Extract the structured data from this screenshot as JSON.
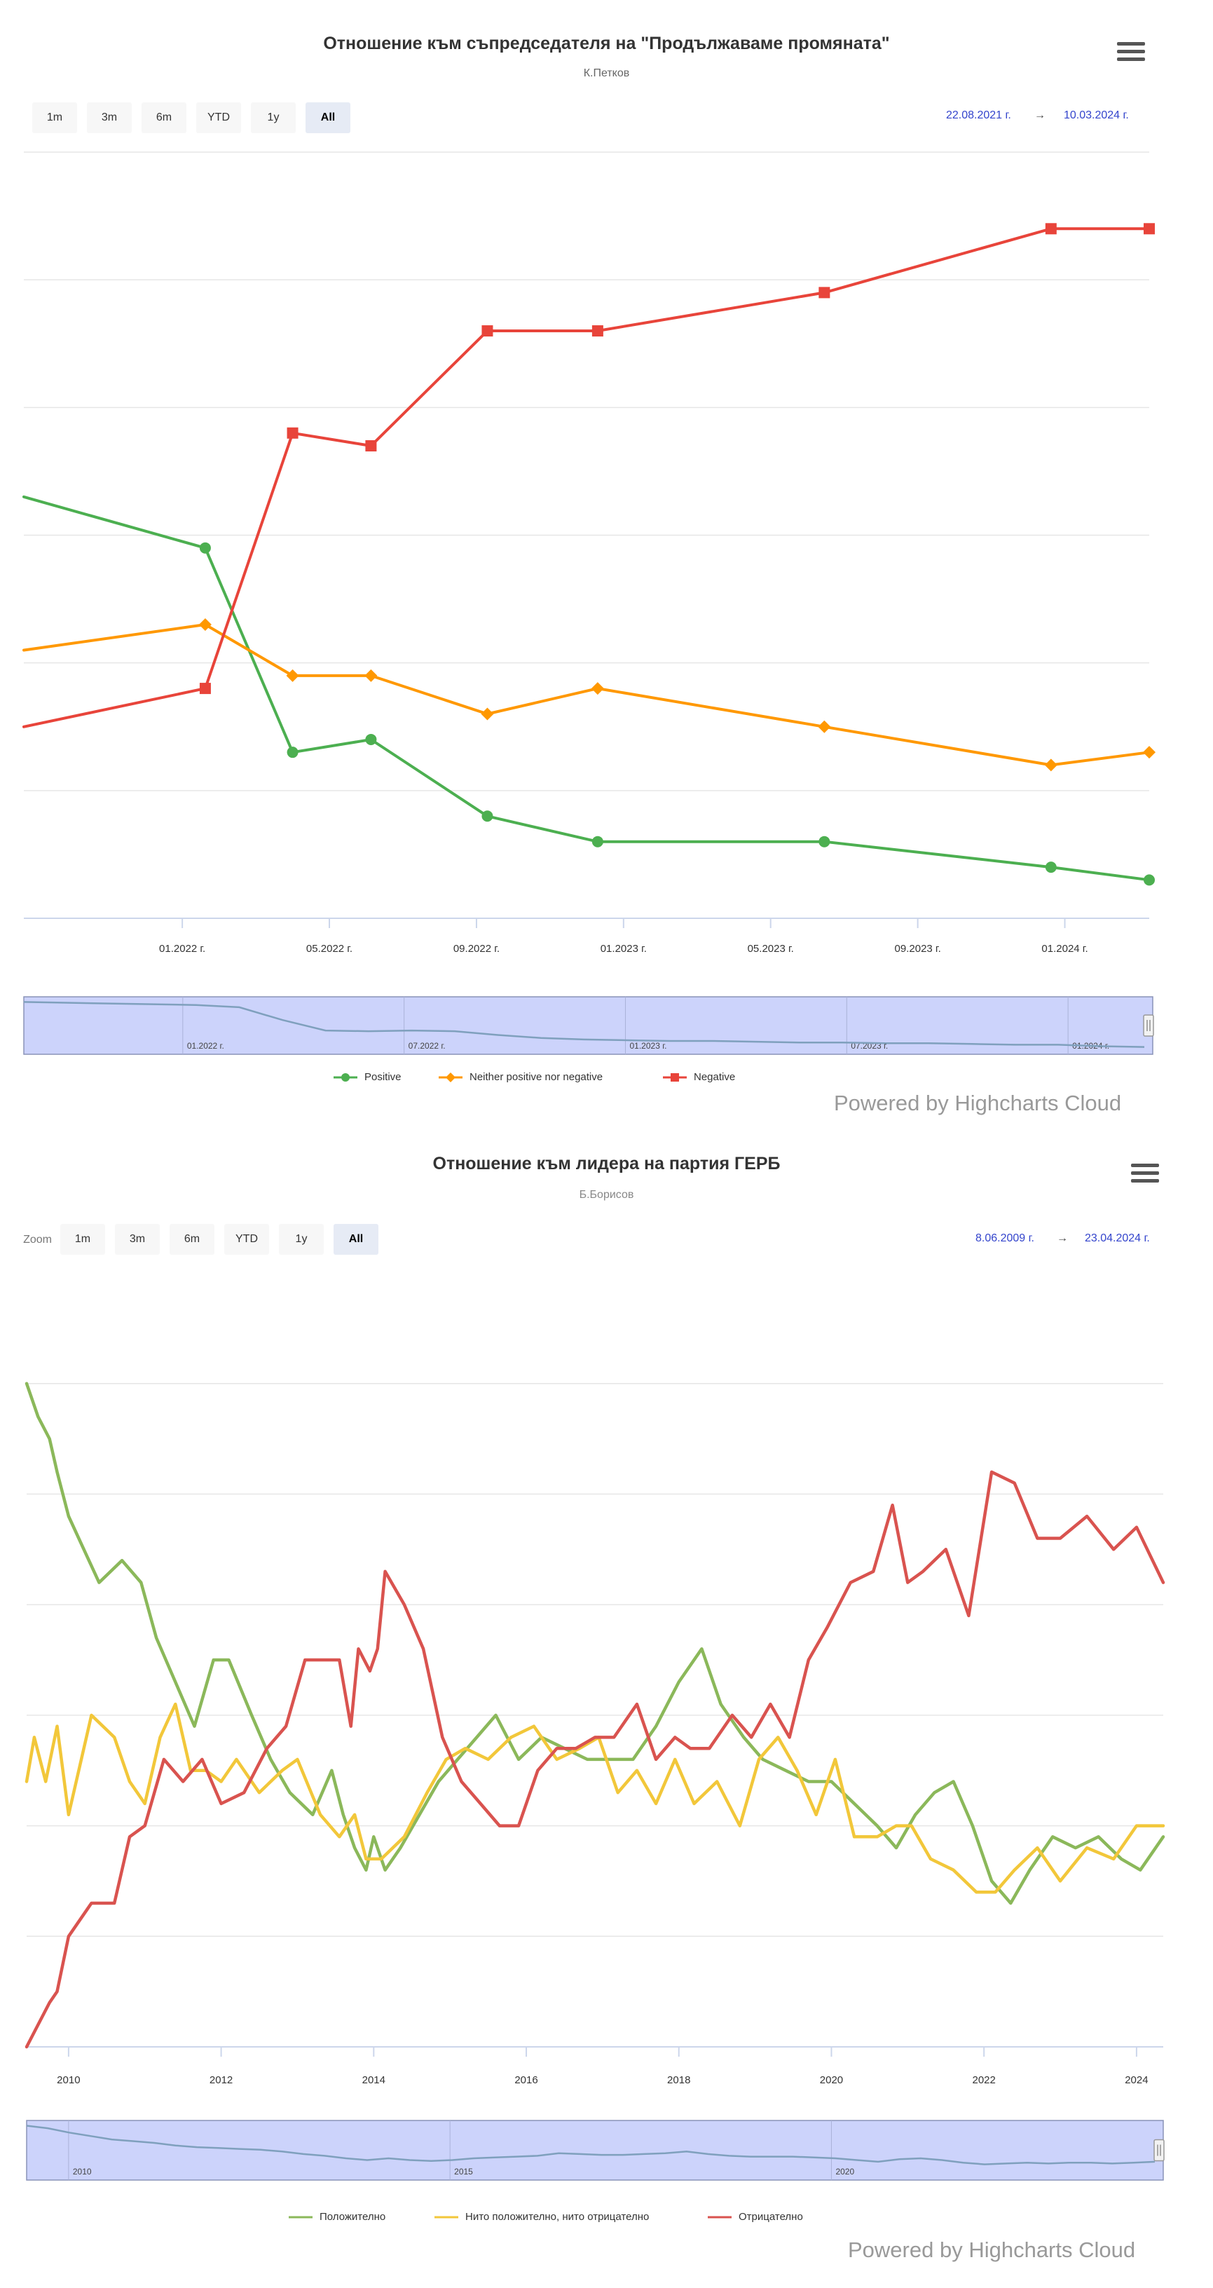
{
  "charts": [
    {
      "title": "Отношение към съпредседателя на \"Продължаваме промяната\"",
      "subtitle": "К.Петков",
      "range_buttons": [
        "1m",
        "3m",
        "6m",
        "YTD",
        "1y",
        "All"
      ],
      "active_range": "All",
      "zoom_label": "",
      "date_from": "22.08.2021 г.",
      "date_separator": "→",
      "date_to": "10.03.2024 г.",
      "legend": [
        "Positive",
        "Neither positive nor negative",
        "Negative"
      ],
      "powered_by": "Powered by Highcharts Cloud"
    },
    {
      "title": "Отношение към лидера на партия ГЕРБ",
      "subtitle": "Б.Борисов",
      "range_buttons": [
        "1m",
        "3m",
        "6m",
        "YTD",
        "1y",
        "All"
      ],
      "active_range": "All",
      "zoom_label": "Zoom",
      "date_from": "8.06.2009 г.",
      "date_separator": "→",
      "date_to": "23.04.2024 г.",
      "legend": [
        "Положително",
        "Нито положително, нито отрицателно",
        "Отрицателно"
      ],
      "powered_by": "Powered by Highcharts Cloud"
    }
  ],
  "chart_data": [
    {
      "type": "line",
      "x_axis": "datetime",
      "xlim": [
        "2021-08-22",
        "2024-03-10"
      ],
      "ylim": [
        0,
        60
      ],
      "grid": true,
      "legend_position": "bottom",
      "x_tick_labels": [
        "01.2022 г.",
        "05.2022 г.",
        "09.2022 г.",
        "01.2023 г.",
        "05.2023 г.",
        "09.2023 г.",
        "01.2024 г."
      ],
      "navigator_labels": [
        "01.2022 г.",
        "07.2022 г.",
        "01.2023 г.",
        "07.2023 г.",
        "01.2024 г."
      ],
      "series": [
        {
          "name": "Positive",
          "color": "#4caf50",
          "marker": "circle",
          "x": [
            "2021-08-22",
            "2022-01-20",
            "2022-04-01",
            "2022-06-05",
            "2022-09-10",
            "2022-12-10",
            "2023-06-15",
            "2023-12-20",
            "2024-03-10"
          ],
          "y": [
            33,
            29,
            13,
            14,
            8,
            6,
            6,
            4,
            3
          ]
        },
        {
          "name": "Neither positive nor negative",
          "color": "#ff9800",
          "marker": "diamond",
          "x": [
            "2021-08-22",
            "2022-01-20",
            "2022-04-01",
            "2022-06-05",
            "2022-09-10",
            "2022-12-10",
            "2023-06-15",
            "2023-12-20",
            "2024-03-10"
          ],
          "y": [
            21,
            23,
            19,
            19,
            16,
            18,
            15,
            12,
            13
          ]
        },
        {
          "name": "Negative",
          "color": "#e8443a",
          "marker": "square",
          "x": [
            "2021-08-22",
            "2022-01-20",
            "2022-04-01",
            "2022-06-05",
            "2022-09-10",
            "2022-12-10",
            "2023-06-15",
            "2023-12-20",
            "2024-03-10"
          ],
          "y": [
            15,
            18,
            38,
            37,
            46,
            46,
            49,
            54,
            54
          ]
        }
      ],
      "navigator_series": [
        33,
        32.5,
        32,
        31.5,
        31,
        29.5,
        21,
        14,
        13.5,
        14,
        13.5,
        11,
        9,
        8,
        7.5,
        7,
        7,
        6.5,
        6,
        6,
        5.5,
        5.5,
        5,
        4.5,
        4.5,
        3.5,
        3
      ]
    },
    {
      "type": "line",
      "x_axis": "numeric",
      "xlim": [
        2009.45,
        2024.35
      ],
      "ylim": [
        0,
        70
      ],
      "grid": true,
      "legend_position": "bottom",
      "x_tick_labels": [
        "2010",
        "2012",
        "2014",
        "2016",
        "2018",
        "2020",
        "2022",
        "2024"
      ],
      "navigator_labels": [
        "2010",
        "2015",
        "2020"
      ],
      "series": [
        {
          "name": "Положително",
          "color": "#8bb85a",
          "x": [
            2009.45,
            2009.6,
            2009.75,
            2009.85,
            2010.0,
            2010.4,
            2010.7,
            2010.95,
            2011.15,
            2011.4,
            2011.65,
            2011.9,
            2012.1,
            2012.4,
            2012.65,
            2012.9,
            2013.2,
            2013.45,
            2013.6,
            2013.75,
            2013.9,
            2014.0,
            2014.15,
            2014.35,
            2014.6,
            2014.85,
            2015.1,
            2015.35,
            2015.6,
            2015.9,
            2016.2,
            2016.5,
            2016.8,
            2017.1,
            2017.4,
            2017.7,
            2018.0,
            2018.3,
            2018.55,
            2018.85,
            2019.1,
            2019.4,
            2019.7,
            2020.0,
            2020.3,
            2020.6,
            2020.85,
            2021.1,
            2021.35,
            2021.6,
            2021.85,
            2022.1,
            2022.35,
            2022.6,
            2022.9,
            2023.2,
            2023.5,
            2023.8,
            2024.05,
            2024.35
          ],
          "y": [
            60,
            57,
            55,
            52,
            48,
            42,
            44,
            42,
            37,
            33,
            29,
            35,
            35,
            30,
            26,
            23,
            21,
            25,
            21,
            18,
            16,
            19,
            16,
            18,
            21,
            24,
            26,
            28,
            30,
            26,
            28,
            27,
            26,
            26,
            26,
            29,
            33,
            36,
            31,
            28,
            26,
            25,
            24,
            24,
            22,
            20,
            18,
            21,
            23,
            24,
            20,
            15,
            13,
            16,
            19,
            18,
            19,
            17,
            16,
            19
          ]
        },
        {
          "name": "Нито положително, нито отрицателно",
          "color": "#f2c73a",
          "x": [
            2009.45,
            2009.55,
            2009.7,
            2009.85,
            2010.0,
            2010.3,
            2010.6,
            2010.8,
            2011.0,
            2011.2,
            2011.4,
            2011.6,
            2011.8,
            2012.0,
            2012.2,
            2012.5,
            2012.8,
            2013.0,
            2013.3,
            2013.55,
            2013.75,
            2013.9,
            2014.1,
            2014.4,
            2014.7,
            2014.95,
            2015.2,
            2015.5,
            2015.8,
            2016.1,
            2016.4,
            2016.7,
            2016.95,
            2017.2,
            2017.45,
            2017.7,
            2017.95,
            2018.2,
            2018.5,
            2018.8,
            2019.05,
            2019.3,
            2019.55,
            2019.8,
            2020.05,
            2020.3,
            2020.6,
            2020.85,
            2021.05,
            2021.3,
            2021.6,
            2021.9,
            2022.15,
            2022.4,
            2022.7,
            2023.0,
            2023.35,
            2023.7,
            2024.0,
            2024.35
          ],
          "y": [
            24,
            28,
            24,
            29,
            21,
            30,
            28,
            24,
            22,
            28,
            31,
            25,
            25,
            24,
            26,
            23,
            25,
            26,
            21,
            19,
            21,
            17,
            17,
            19,
            23,
            26,
            27,
            26,
            28,
            29,
            26,
            27,
            28,
            23,
            25,
            22,
            26,
            22,
            24,
            20,
            26,
            28,
            25,
            21,
            26,
            19,
            19,
            20,
            20,
            17,
            16,
            14,
            14,
            16,
            18,
            15,
            18,
            17,
            20,
            20
          ]
        },
        {
          "name": "Отрицателно",
          "color": "#d9534f",
          "x": [
            2009.45,
            2009.6,
            2009.75,
            2009.85,
            2010.0,
            2010.3,
            2010.6,
            2010.8,
            2011.0,
            2011.25,
            2011.5,
            2011.75,
            2012.0,
            2012.3,
            2012.6,
            2012.85,
            2013.1,
            2013.35,
            2013.55,
            2013.7,
            2013.8,
            2013.95,
            2014.05,
            2014.15,
            2014.4,
            2014.65,
            2014.9,
            2015.15,
            2015.4,
            2015.65,
            2015.9,
            2016.15,
            2016.4,
            2016.65,
            2016.9,
            2017.15,
            2017.45,
            2017.7,
            2017.95,
            2018.15,
            2018.4,
            2018.7,
            2018.95,
            2019.2,
            2019.45,
            2019.7,
            2019.95,
            2020.25,
            2020.55,
            2020.8,
            2021.0,
            2021.2,
            2021.5,
            2021.8,
            2022.1,
            2022.4,
            2022.7,
            2023.0,
            2023.35,
            2023.7,
            2024.0,
            2024.35
          ],
          "y": [
            0,
            2,
            4,
            5,
            10,
            13,
            13,
            19,
            20,
            26,
            24,
            26,
            22,
            23,
            27,
            29,
            35,
            35,
            35,
            29,
            36,
            34,
            36,
            43,
            40,
            36,
            28,
            24,
            22,
            20,
            20,
            25,
            27,
            27,
            28,
            28,
            31,
            26,
            28,
            27,
            27,
            30,
            28,
            31,
            28,
            35,
            38,
            42,
            43,
            49,
            42,
            43,
            45,
            39,
            52,
            51,
            46,
            46,
            48,
            45,
            47,
            42
          ]
        }
      ],
      "navigator_series": [
        60,
        57,
        52,
        48,
        44,
        42,
        40,
        37,
        35,
        34,
        33,
        32,
        30,
        27,
        25,
        22,
        20,
        22,
        20,
        19,
        20,
        22,
        23,
        24,
        25,
        28,
        27,
        26,
        26,
        27,
        28,
        30,
        27,
        25,
        24,
        24,
        24,
        23,
        22,
        20,
        18,
        21,
        22,
        20,
        17,
        15,
        16,
        17,
        16,
        17,
        17,
        16,
        17,
        18
      ]
    }
  ]
}
